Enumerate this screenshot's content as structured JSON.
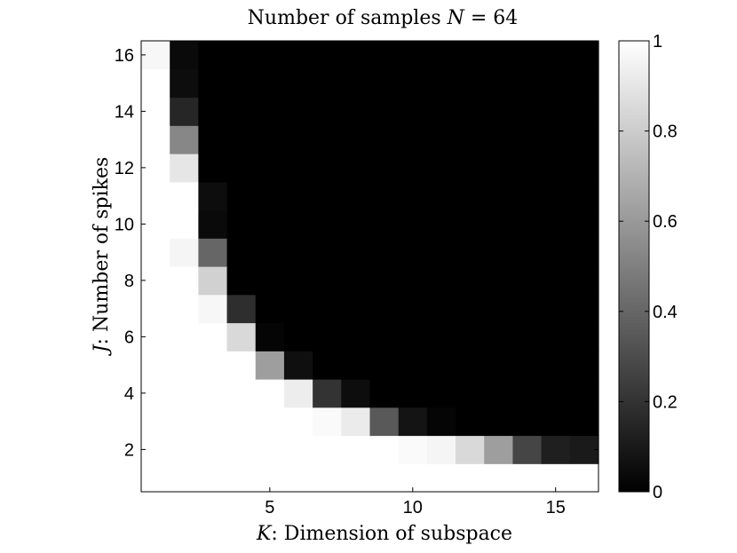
{
  "chart_data": {
    "type": "heatmap",
    "title": "Number of samples N = 64",
    "title_parts": {
      "text": "Number of samples ",
      "var": "N",
      "rest": " = 64"
    },
    "xlabel": "K: Dimension of subspace",
    "xlabel_parts": {
      "var": "K",
      "rest": ": Dimension of subspace"
    },
    "ylabel": "J: Number of spikes",
    "ylabel_parts": {
      "var": "J",
      "rest": ": Number of spikes"
    },
    "x_range": [
      1,
      16
    ],
    "y_range": [
      1,
      16
    ],
    "x_ticks": [
      5,
      10,
      15
    ],
    "y_ticks": [
      2,
      4,
      6,
      8,
      10,
      12,
      14,
      16
    ],
    "colorbar": {
      "min": 0,
      "max": 1,
      "ticks": [
        "0",
        "0.2",
        "0.4",
        "0.6",
        "0.8",
        "1"
      ]
    },
    "colormap": "gray",
    "grid": false,
    "note_rows": "values[r] is the row for J = r + 1; each row lists K = 1..16",
    "values": [
      [
        1,
        1,
        1,
        1,
        1,
        1,
        1,
        1,
        1,
        1,
        1,
        1,
        1,
        1,
        1,
        1
      ],
      [
        1,
        1,
        1,
        1,
        1,
        1,
        1,
        1,
        1,
        0.98,
        0.96,
        0.85,
        0.62,
        0.27,
        0.12,
        0.1
      ],
      [
        1,
        1,
        1,
        1,
        1,
        1,
        0.98,
        0.92,
        0.35,
        0.08,
        0.02,
        0,
        0,
        0,
        0,
        0
      ],
      [
        1,
        1,
        1,
        1,
        1,
        0.93,
        0.2,
        0.05,
        0,
        0,
        0,
        0,
        0,
        0,
        0,
        0
      ],
      [
        1,
        1,
        1,
        1,
        0.62,
        0.06,
        0,
        0,
        0,
        0,
        0,
        0,
        0,
        0,
        0,
        0
      ],
      [
        1,
        1,
        1,
        0.85,
        0.02,
        0,
        0,
        0,
        0,
        0,
        0,
        0,
        0,
        0,
        0,
        0
      ],
      [
        1,
        1,
        0.97,
        0.18,
        0,
        0,
        0,
        0,
        0,
        0,
        0,
        0,
        0,
        0,
        0,
        0
      ],
      [
        1,
        1,
        0.82,
        0,
        0,
        0,
        0,
        0,
        0,
        0,
        0,
        0,
        0,
        0,
        0,
        0
      ],
      [
        1,
        0.96,
        0.4,
        0,
        0,
        0,
        0,
        0,
        0,
        0,
        0,
        0,
        0,
        0,
        0,
        0
      ],
      [
        1,
        1,
        0.04,
        0,
        0,
        0,
        0,
        0,
        0,
        0,
        0,
        0,
        0,
        0,
        0,
        0
      ],
      [
        1,
        1,
        0.05,
        0,
        0,
        0,
        0,
        0,
        0,
        0,
        0,
        0,
        0,
        0,
        0,
        0
      ],
      [
        1,
        0.9,
        0,
        0,
        0,
        0,
        0,
        0,
        0,
        0,
        0,
        0,
        0,
        0,
        0,
        0
      ],
      [
        1,
        0.53,
        0,
        0,
        0,
        0,
        0,
        0,
        0,
        0,
        0,
        0,
        0,
        0,
        0,
        0
      ],
      [
        1,
        0.15,
        0,
        0,
        0,
        0,
        0,
        0,
        0,
        0,
        0,
        0,
        0,
        0,
        0,
        0
      ],
      [
        1,
        0.05,
        0,
        0,
        0,
        0,
        0,
        0,
        0,
        0,
        0,
        0,
        0,
        0,
        0,
        0
      ],
      [
        0.97,
        0.04,
        0,
        0,
        0,
        0,
        0,
        0,
        0,
        0,
        0,
        0,
        0,
        0,
        0,
        0
      ]
    ]
  }
}
